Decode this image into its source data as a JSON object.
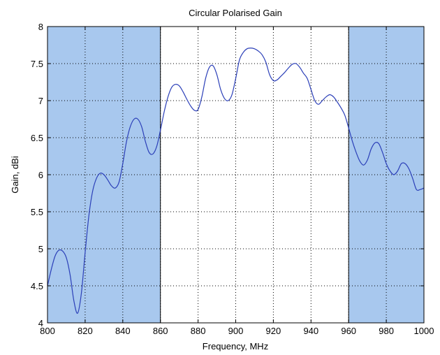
{
  "chart_data": {
    "type": "line",
    "title": "Circular Polarised Gain",
    "xlabel": "Frequency, MHz",
    "ylabel": "Gain, dBi",
    "xlim": [
      800,
      1000
    ],
    "ylim": [
      4,
      8
    ],
    "xticks": [
      800,
      820,
      840,
      860,
      880,
      900,
      920,
      940,
      960,
      980,
      1000
    ],
    "yticks": [
      4,
      4.5,
      5,
      5.5,
      6,
      6.5,
      7,
      7.5,
      8
    ],
    "xtick_labels": [
      "800",
      "820",
      "840",
      "860",
      "880",
      "900",
      "920",
      "940",
      "960",
      "980",
      "1000"
    ],
    "ytick_labels": [
      "4",
      "4.5",
      "5",
      "5.5",
      "6",
      "6.5",
      "7",
      "7.5",
      "8"
    ],
    "grid": true,
    "shaded_regions": [
      {
        "x": [
          800,
          860
        ],
        "color": "#a8c8ee"
      },
      {
        "x": [
          960,
          1000
        ],
        "color": "#a8c8ee"
      }
    ],
    "series": [
      {
        "color": "#2b3fb8",
        "x": [
          800,
          802,
          804,
          806,
          808,
          810,
          812,
          814,
          816,
          818,
          820,
          822,
          824,
          826,
          828,
          830,
          832,
          834,
          836,
          838,
          840,
          842,
          844,
          846,
          848,
          850,
          852,
          854,
          856,
          858,
          860,
          862,
          864,
          866,
          868,
          870,
          872,
          874,
          876,
          878,
          880,
          882,
          884,
          886,
          888,
          890,
          892,
          894,
          896,
          898,
          900,
          902,
          904,
          906,
          908,
          910,
          912,
          914,
          916,
          918,
          920,
          922,
          924,
          926,
          928,
          930,
          932,
          934,
          936,
          938,
          940,
          942,
          944,
          946,
          948,
          950,
          952,
          954,
          956,
          958,
          960,
          962,
          964,
          966,
          968,
          970,
          972,
          974,
          976,
          978,
          980,
          982,
          984,
          986,
          988,
          990,
          992,
          994,
          996,
          998,
          1000
        ],
        "values": [
          4.5,
          4.72,
          4.9,
          4.98,
          4.97,
          4.88,
          4.65,
          4.3,
          4.13,
          4.4,
          4.95,
          5.45,
          5.78,
          5.95,
          6.02,
          6.0,
          5.93,
          5.85,
          5.82,
          5.9,
          6.15,
          6.45,
          6.65,
          6.75,
          6.75,
          6.65,
          6.45,
          6.3,
          6.28,
          6.38,
          6.6,
          6.85,
          7.05,
          7.18,
          7.22,
          7.2,
          7.12,
          7.02,
          6.93,
          6.87,
          6.88,
          7.05,
          7.3,
          7.45,
          7.47,
          7.35,
          7.15,
          7.03,
          7.0,
          7.08,
          7.3,
          7.55,
          7.65,
          7.7,
          7.71,
          7.7,
          7.67,
          7.62,
          7.52,
          7.35,
          7.27,
          7.28,
          7.33,
          7.38,
          7.44,
          7.49,
          7.5,
          7.45,
          7.37,
          7.3,
          7.15,
          7.0,
          6.95,
          7.0,
          7.05,
          7.08,
          7.05,
          6.98,
          6.9,
          6.8,
          6.63,
          6.45,
          6.3,
          6.18,
          6.13,
          6.2,
          6.35,
          6.43,
          6.42,
          6.3,
          6.15,
          6.05,
          6.0,
          6.05,
          6.15,
          6.15,
          6.08,
          5.95,
          5.8,
          5.8,
          5.82
        ]
      }
    ]
  }
}
